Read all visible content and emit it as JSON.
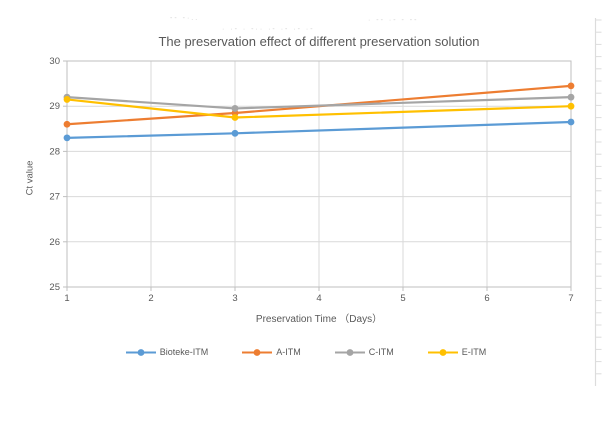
{
  "artifacts": {
    "faded_line_1": "-- -·..",
    "faded_line_2": "· -- ·- - --",
    "faded_line_3": "·  ·-  ·  -··  ·-  ·-  ·-  ·-"
  },
  "chart_data": {
    "type": "line",
    "title": "The preservation effect of different preservation solution",
    "xlabel": "Preservation Time （Days）",
    "ylabel": "Ct value",
    "x": [
      1,
      3,
      7
    ],
    "xlim": [
      1,
      7
    ],
    "ylim": [
      25,
      30
    ],
    "xticks": [
      1,
      2,
      3,
      4,
      5,
      6,
      7
    ],
    "yticks": [
      25,
      26,
      27,
      28,
      29,
      30
    ],
    "grid": true,
    "legend_position": "bottom",
    "series": [
      {
        "name": "Bioteke-ITM",
        "color": "#5B9BD5",
        "values": [
          28.3,
          28.4,
          28.65
        ]
      },
      {
        "name": "A-ITM",
        "color": "#ED7D31",
        "values": [
          28.6,
          28.85,
          29.45
        ]
      },
      {
        "name": "C-ITM",
        "color": "#A5A5A5",
        "values": [
          29.2,
          28.95,
          29.2
        ]
      },
      {
        "name": "E-ITM",
        "color": "#FFC000",
        "values": [
          29.15,
          28.75,
          29.0
        ]
      }
    ],
    "colors": {
      "grid": "#D9D9D9",
      "axis": "#BFBFBF",
      "text": "#595959",
      "ruler": "#DCDCDC"
    }
  }
}
